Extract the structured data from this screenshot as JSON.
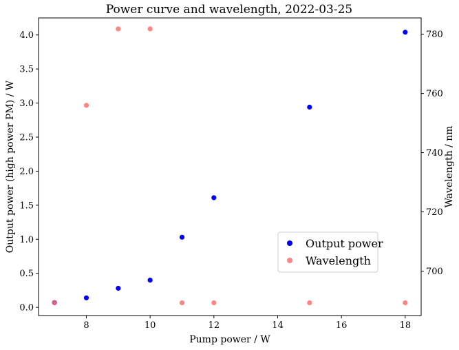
{
  "chart_data": {
    "type": "scatter",
    "title": "Power curve and wavelength, 2022-03-25",
    "xlabel": "Pump power / W",
    "ylabel_left": "Output power (high power PM) / W",
    "ylabel_right": "Wavelength / nm",
    "xlim": [
      6.5,
      18.5
    ],
    "ylim_left": [
      -0.12,
      4.25
    ],
    "ylim_right": [
      685.0,
      785.5
    ],
    "xticks": [
      "8",
      "10",
      "12",
      "14",
      "16",
      "18"
    ],
    "yticks_left": [
      "0.0",
      "0.5",
      "1.0",
      "1.5",
      "2.0",
      "2.5",
      "3.0",
      "3.5",
      "4.0"
    ],
    "yticks_right": [
      "700",
      "720",
      "740",
      "760",
      "780"
    ],
    "grid": false,
    "legend_position": "center-right",
    "series": [
      {
        "name": "Output power",
        "axis": "left",
        "color": "#0000ff",
        "x": [
          7,
          8,
          9,
          10,
          11,
          12,
          15,
          18
        ],
        "y": [
          0.07,
          0.14,
          0.28,
          0.4,
          1.03,
          1.61,
          2.94,
          4.04
        ]
      },
      {
        "name": "Wavelength",
        "axis": "right",
        "color": "#ff7070",
        "x": [
          7,
          8,
          9,
          10,
          11,
          12,
          15,
          18
        ],
        "y": [
          689.3,
          756.0,
          781.8,
          781.8,
          689.3,
          689.3,
          689.3,
          689.3
        ]
      }
    ]
  }
}
